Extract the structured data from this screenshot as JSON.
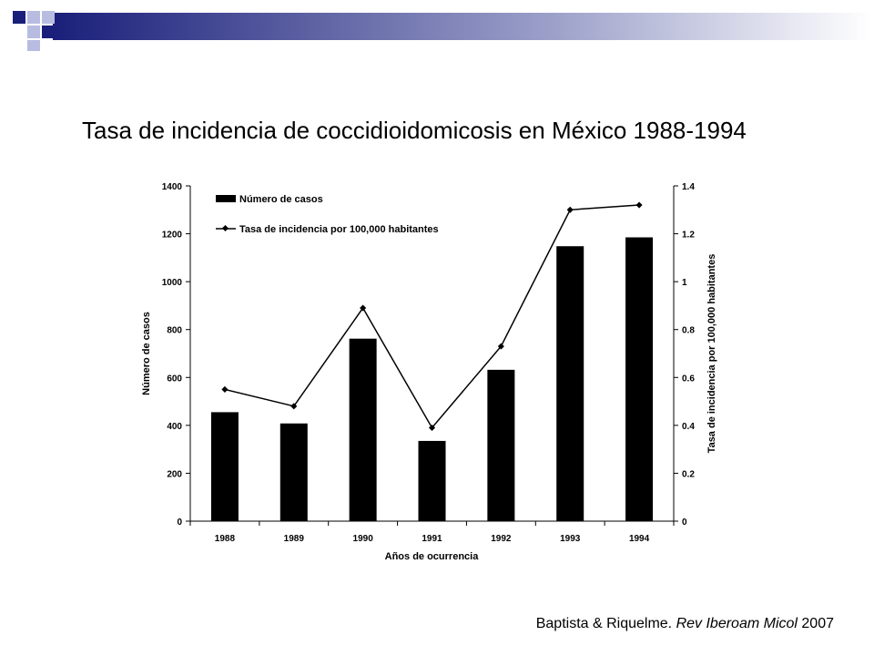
{
  "slide": {
    "title": "Tasa de incidencia de coccidioidomicosis en México 1988-1994",
    "citation_plain": "Baptista & Riquelme.",
    "citation_journal": "Rev Iberoam Micol",
    "citation_year": "2007"
  },
  "colors": {
    "bar": "#000000",
    "line": "#000000",
    "header_navy": "#1a1f7a",
    "header_light": "#b8bce0"
  },
  "chart_data": {
    "type": "bar",
    "categories": [
      "1988",
      "1989",
      "1990",
      "1991",
      "1992",
      "1993",
      "1994"
    ],
    "series": [
      {
        "name": "Número de casos",
        "type": "bar",
        "axis": "left",
        "values": [
          455,
          408,
          762,
          335,
          632,
          1148,
          1185
        ]
      },
      {
        "name": "Tasa de incidencia por 100,000 habitantes",
        "type": "line",
        "axis": "right",
        "values": [
          0.55,
          0.48,
          0.89,
          0.39,
          0.73,
          1.3,
          1.32
        ]
      }
    ],
    "xlabel": "Años de ocurrencia",
    "ylabel": "Número de casos",
    "y2label": "Tasa de incidencia por 100,000 habitantes",
    "ylim": [
      0,
      1400
    ],
    "y2lim": [
      0,
      1.4
    ],
    "yticks": [
      "0",
      "200",
      "400",
      "600",
      "800",
      "1000",
      "1200",
      "1400"
    ],
    "y2ticks": [
      "0",
      "0.2",
      "0.4",
      "0.6",
      "0.8",
      "1",
      "1.2",
      "1.4"
    ],
    "grid": false,
    "legend_position": "top-left"
  }
}
